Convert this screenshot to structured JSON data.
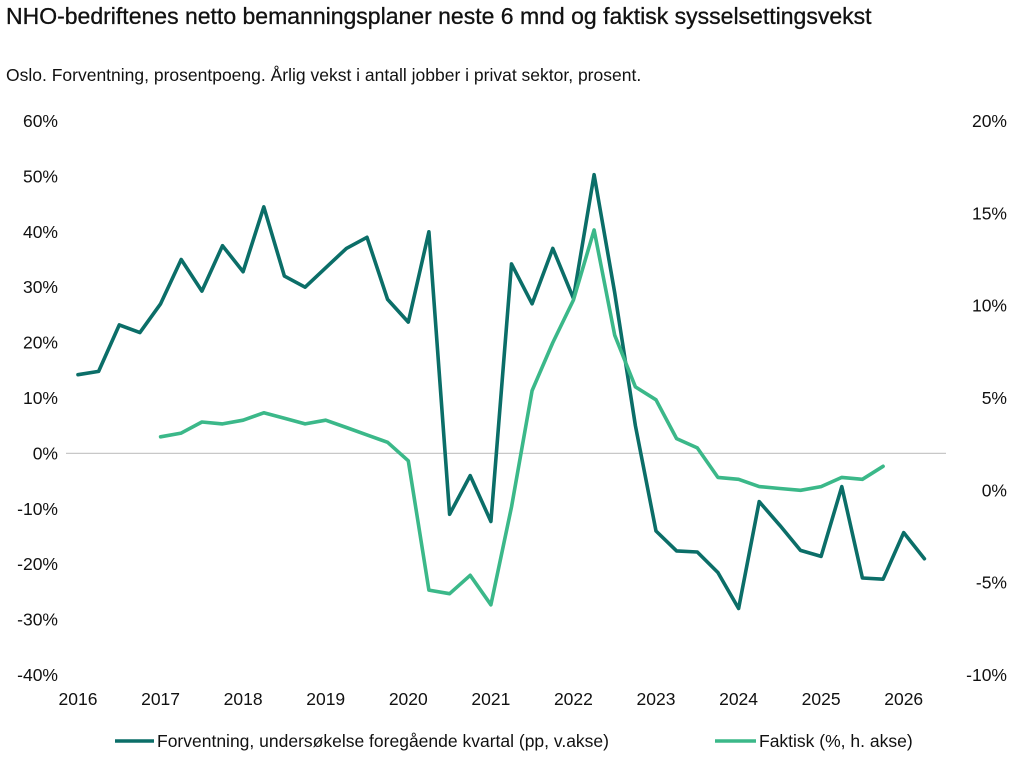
{
  "chart_data": {
    "type": "line",
    "title": "NHO-bedriftenes netto bemanningsplaner neste 6 mnd og faktisk sysselsettingsvekst",
    "subtitle": "Oslo. Forventning, prosentpoeng. Årlig vekst i antall jobber i privat sektor, prosent.",
    "x_ticks": [
      "2016",
      "2017",
      "2018",
      "2019",
      "2020",
      "2021",
      "2022",
      "2023",
      "2024",
      "2025",
      "2026"
    ],
    "x_range": [
      2016.0,
      2026.5
    ],
    "left_axis": {
      "min": -40,
      "max": 60,
      "ticks": [
        "60%",
        "50%",
        "40%",
        "30%",
        "20%",
        "10%",
        "0%",
        "-10%",
        "-20%",
        "-30%",
        "-40%"
      ]
    },
    "right_axis": {
      "min": -10,
      "max": 20,
      "ticks": [
        "20%",
        "15%",
        "10%",
        "5%",
        "0%",
        "-5%",
        "-10%"
      ]
    },
    "series": [
      {
        "name": "Forventning, undersøkelse foregående kvartal (pp, v.akse)",
        "axis": "left",
        "color": "#0b6e68",
        "x": [
          2016.0,
          2016.25,
          2016.5,
          2016.75,
          2017.0,
          2017.25,
          2017.5,
          2017.75,
          2018.0,
          2018.25,
          2018.5,
          2018.75,
          2019.0,
          2019.25,
          2019.5,
          2019.75,
          2020.0,
          2020.25,
          2020.5,
          2020.75,
          2021.0,
          2021.25,
          2021.5,
          2021.75,
          2022.0,
          2022.25,
          2022.5,
          2022.75,
          2023.0,
          2023.25,
          2023.5,
          2023.75,
          2024.0,
          2024.25,
          2024.5,
          2024.75,
          2025.0,
          2025.25,
          2025.5,
          2025.75,
          2026.0,
          2026.25
        ],
        "values": [
          14.2,
          14.8,
          23.2,
          21.8,
          27,
          35,
          29.3,
          37.5,
          32.8,
          44.5,
          32,
          30,
          33.5,
          37,
          39,
          27.8,
          23.7,
          40,
          -11,
          -4,
          -12.3,
          34.2,
          27,
          37,
          28,
          50.3,
          29,
          5,
          -14,
          -17.6,
          -17.8,
          -21.5,
          -28,
          -8.7,
          -13,
          -17.5,
          -18.6,
          -6,
          -22.5,
          -22.7,
          -14.3,
          -19
        ]
      },
      {
        "name": "Faktisk (%, h. akse)",
        "axis": "right",
        "color": "#3bb889",
        "x": [
          2017.0,
          2017.25,
          2017.5,
          2017.75,
          2018.0,
          2018.25,
          2018.5,
          2018.75,
          2019.0,
          2019.25,
          2019.5,
          2019.75,
          2020.0,
          2020.25,
          2020.5,
          2020.75,
          2021.0,
          2021.25,
          2021.5,
          2021.75,
          2022.0,
          2022.25,
          2022.5,
          2022.75,
          2023.0,
          2023.25,
          2023.5,
          2023.75,
          2024.0,
          2024.25,
          2024.5,
          2024.75,
          2025.0,
          2025.25,
          2025.5,
          2025.75
        ],
        "values": [
          2.9,
          3.1,
          3.7,
          3.6,
          3.8,
          4.2,
          3.9,
          3.6,
          3.8,
          3.4,
          3.0,
          2.6,
          1.6,
          -5.4,
          -5.6,
          -4.6,
          -6.2,
          -0.9,
          5.4,
          8.0,
          10.3,
          14.1,
          8.4,
          5.6,
          4.9,
          2.8,
          2.3,
          0.7,
          0.6,
          0.2,
          0.1,
          0.0,
          0.2,
          0.7,
          0.6,
          1.3
        ]
      }
    ],
    "legend": {
      "position": "bottom"
    }
  }
}
